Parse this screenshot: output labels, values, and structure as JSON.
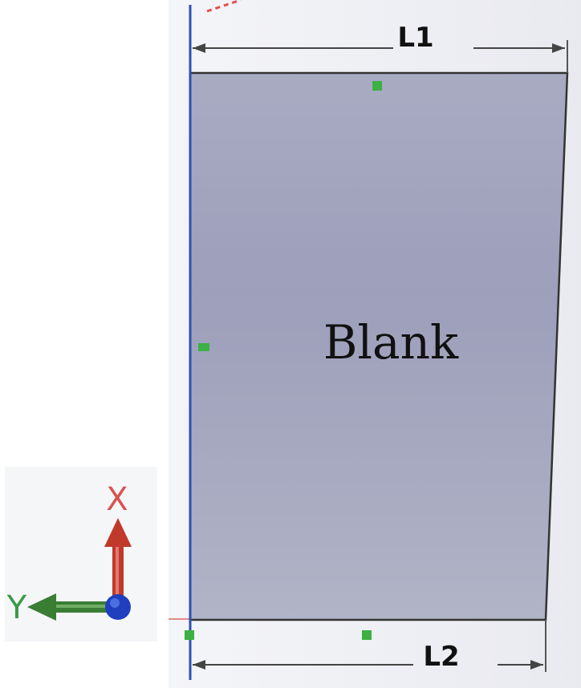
{
  "dimensions": {
    "top_label": "L1",
    "bottom_label": "L2"
  },
  "part": {
    "label": "Blank"
  },
  "triad": {
    "x_label": "X",
    "y_label": "Y",
    "x_color": "#c0392b",
    "y_color": "#3a7d35",
    "origin_color": "#1f3fbf"
  },
  "colors": {
    "face_top": "#a9abc3",
    "face_mid": "#9d9fbb",
    "face_bottom": "#b1b3c6",
    "edge": "#333333",
    "sketch_line": "#2e4fb3",
    "handle": "#3cb043"
  }
}
